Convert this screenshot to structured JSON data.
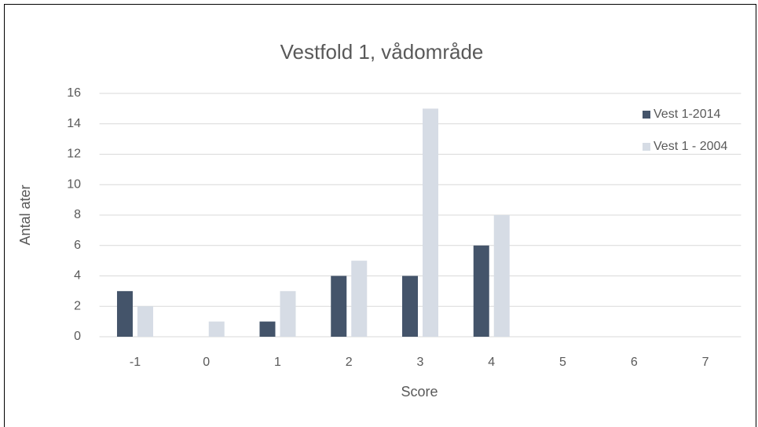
{
  "chart_data": {
    "type": "bar",
    "title": "Vestfold 1, vådområde",
    "x_label": "Score",
    "y_label": "Antal ater",
    "categories": [
      "-1",
      "0",
      "1",
      "2",
      "3",
      "4",
      "5",
      "6",
      "7"
    ],
    "series": [
      {
        "name": "Vest 1-2014",
        "color": "#44546a",
        "values": [
          3,
          0,
          1,
          4,
          4,
          6,
          0,
          0,
          0
        ]
      },
      {
        "name": "Vest 1 - 2004",
        "color": "#d6dce5",
        "values": [
          2,
          1,
          3,
          5,
          15,
          8,
          0,
          0,
          0
        ]
      }
    ],
    "ylim": [
      0,
      16
    ],
    "yticks": [
      0,
      2,
      4,
      6,
      8,
      10,
      12,
      14,
      16
    ],
    "grid": true,
    "legend": "right"
  }
}
